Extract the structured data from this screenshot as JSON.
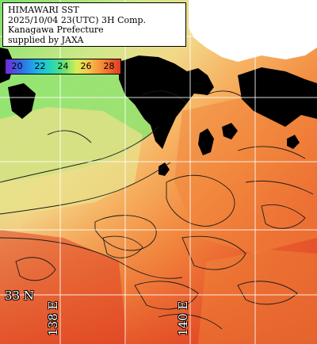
{
  "info": {
    "line1": "HIMAWARI SST",
    "line2": "2025/10/04 23(UTC) 3H Comp.",
    "line3": "Kanagawa Prefecture",
    "line4": "supplied by JAXA"
  },
  "legend": {
    "ticks": [
      "20",
      "22",
      "24",
      "26",
      "28"
    ]
  },
  "grid": {
    "lat_label": "33 N",
    "lon_labels": [
      "138 E",
      "140 E"
    ]
  },
  "colors": {
    "land": "#000000",
    "cloud_mask": "#ffffff",
    "gridline": "#ffffff",
    "warm_sst": "#e8502a",
    "mid_sst": "#f6ad55",
    "cool_sst": "#7ee66f",
    "coldest_sst": "#2ab3d6"
  }
}
